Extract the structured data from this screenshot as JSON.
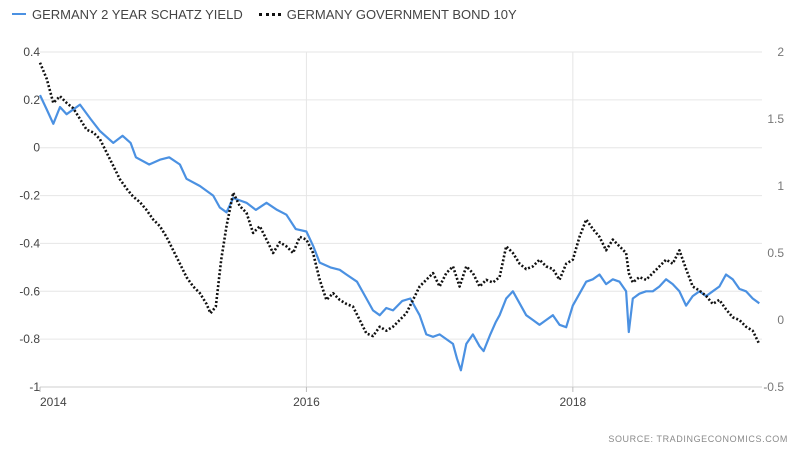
{
  "colors": {
    "yield_2y": "#4b91e2",
    "bond_10y": "#111111",
    "grid": "#e6e6e6",
    "axis_text": "#444444"
  },
  "legend": {
    "series_1": "GERMANY 2 YEAR SCHATZ YIELD",
    "series_2": "GERMANY GOVERNMENT BOND 10Y"
  },
  "source": "SOURCE:  TRADINGECONOMICS.COM",
  "chart_data": {
    "type": "line",
    "grid": true,
    "legend_position": "top-left",
    "x_axis": {
      "range": [
        2014.0,
        2019.42
      ],
      "ticks": [
        2014,
        2016,
        2018
      ],
      "tick_labels": [
        "2014",
        "2016",
        "2018"
      ]
    },
    "y_left": {
      "range": [
        -1,
        0.4
      ],
      "ticks": [
        0.4,
        0.2,
        0,
        -0.2,
        -0.4,
        -0.6,
        -0.8,
        -1
      ],
      "tick_labels": [
        "0.4",
        "0.2",
        "0",
        "-0.2",
        "-0.4",
        "-0.6",
        "-0.8",
        "-1"
      ]
    },
    "y_right": {
      "range": [
        -0.5,
        2
      ],
      "ticks": [
        2,
        1.5,
        1,
        0.5,
        0,
        -0.5
      ],
      "tick_labels": [
        "2",
        "1.5",
        "1",
        "0.5",
        "0",
        "-0.5"
      ]
    },
    "series": [
      {
        "name": "GERMANY 2 YEAR SCHATZ YIELD",
        "axis": "left",
        "style": "solid",
        "points": [
          [
            2014.0,
            0.22
          ],
          [
            2014.05,
            0.16
          ],
          [
            2014.1,
            0.1
          ],
          [
            2014.15,
            0.17
          ],
          [
            2014.2,
            0.14
          ],
          [
            2014.3,
            0.18
          ],
          [
            2014.38,
            0.12
          ],
          [
            2014.45,
            0.07
          ],
          [
            2014.55,
            0.02
          ],
          [
            2014.62,
            0.05
          ],
          [
            2014.68,
            0.02
          ],
          [
            2014.72,
            -0.04
          ],
          [
            2014.82,
            -0.07
          ],
          [
            2014.9,
            -0.05
          ],
          [
            2014.97,
            -0.04
          ],
          [
            2015.05,
            -0.07
          ],
          [
            2015.1,
            -0.13
          ],
          [
            2015.2,
            -0.16
          ],
          [
            2015.3,
            -0.2
          ],
          [
            2015.35,
            -0.25
          ],
          [
            2015.4,
            -0.27
          ],
          [
            2015.45,
            -0.21
          ],
          [
            2015.5,
            -0.22
          ],
          [
            2015.55,
            -0.23
          ],
          [
            2015.62,
            -0.26
          ],
          [
            2015.7,
            -0.23
          ],
          [
            2015.78,
            -0.26
          ],
          [
            2015.85,
            -0.28
          ],
          [
            2015.92,
            -0.34
          ],
          [
            2016.0,
            -0.35
          ],
          [
            2016.05,
            -0.41
          ],
          [
            2016.1,
            -0.48
          ],
          [
            2016.18,
            -0.5
          ],
          [
            2016.25,
            -0.51
          ],
          [
            2016.3,
            -0.53
          ],
          [
            2016.38,
            -0.56
          ],
          [
            2016.45,
            -0.63
          ],
          [
            2016.5,
            -0.68
          ],
          [
            2016.55,
            -0.7
          ],
          [
            2016.6,
            -0.67
          ],
          [
            2016.65,
            -0.68
          ],
          [
            2016.72,
            -0.64
          ],
          [
            2016.78,
            -0.63
          ],
          [
            2016.85,
            -0.7
          ],
          [
            2016.9,
            -0.78
          ],
          [
            2016.95,
            -0.79
          ],
          [
            2017.0,
            -0.78
          ],
          [
            2017.05,
            -0.8
          ],
          [
            2017.1,
            -0.82
          ],
          [
            2017.13,
            -0.88
          ],
          [
            2017.16,
            -0.93
          ],
          [
            2017.2,
            -0.82
          ],
          [
            2017.25,
            -0.78
          ],
          [
            2017.3,
            -0.83
          ],
          [
            2017.33,
            -0.85
          ],
          [
            2017.38,
            -0.78
          ],
          [
            2017.42,
            -0.73
          ],
          [
            2017.45,
            -0.7
          ],
          [
            2017.5,
            -0.63
          ],
          [
            2017.55,
            -0.6
          ],
          [
            2017.6,
            -0.65
          ],
          [
            2017.65,
            -0.7
          ],
          [
            2017.7,
            -0.72
          ],
          [
            2017.75,
            -0.74
          ],
          [
            2017.8,
            -0.72
          ],
          [
            2017.85,
            -0.7
          ],
          [
            2017.9,
            -0.74
          ],
          [
            2017.95,
            -0.75
          ],
          [
            2018.0,
            -0.66
          ],
          [
            2018.05,
            -0.61
          ],
          [
            2018.1,
            -0.56
          ],
          [
            2018.15,
            -0.55
          ],
          [
            2018.2,
            -0.53
          ],
          [
            2018.25,
            -0.57
          ],
          [
            2018.3,
            -0.55
          ],
          [
            2018.35,
            -0.56
          ],
          [
            2018.4,
            -0.6
          ],
          [
            2018.42,
            -0.77
          ],
          [
            2018.45,
            -0.63
          ],
          [
            2018.5,
            -0.61
          ],
          [
            2018.55,
            -0.6
          ],
          [
            2018.6,
            -0.6
          ],
          [
            2018.65,
            -0.58
          ],
          [
            2018.7,
            -0.55
          ],
          [
            2018.75,
            -0.57
          ],
          [
            2018.8,
            -0.6
          ],
          [
            2018.85,
            -0.66
          ],
          [
            2018.9,
            -0.62
          ],
          [
            2018.95,
            -0.6
          ],
          [
            2019.0,
            -0.62
          ],
          [
            2019.05,
            -0.6
          ],
          [
            2019.1,
            -0.58
          ],
          [
            2019.15,
            -0.53
          ],
          [
            2019.2,
            -0.55
          ],
          [
            2019.25,
            -0.59
          ],
          [
            2019.3,
            -0.6
          ],
          [
            2019.35,
            -0.63
          ],
          [
            2019.4,
            -0.65
          ]
        ]
      },
      {
        "name": "GERMANY GOVERNMENT BOND 10Y",
        "axis": "right",
        "style": "dotted",
        "points": [
          [
            2014.0,
            1.92
          ],
          [
            2014.05,
            1.8
          ],
          [
            2014.1,
            1.62
          ],
          [
            2014.15,
            1.67
          ],
          [
            2014.2,
            1.62
          ],
          [
            2014.25,
            1.58
          ],
          [
            2014.3,
            1.5
          ],
          [
            2014.35,
            1.42
          ],
          [
            2014.4,
            1.4
          ],
          [
            2014.45,
            1.35
          ],
          [
            2014.5,
            1.25
          ],
          [
            2014.55,
            1.15
          ],
          [
            2014.6,
            1.05
          ],
          [
            2014.65,
            0.98
          ],
          [
            2014.7,
            0.92
          ],
          [
            2014.75,
            0.88
          ],
          [
            2014.8,
            0.82
          ],
          [
            2014.85,
            0.75
          ],
          [
            2014.9,
            0.7
          ],
          [
            2014.95,
            0.62
          ],
          [
            2015.0,
            0.52
          ],
          [
            2015.05,
            0.42
          ],
          [
            2015.1,
            0.32
          ],
          [
            2015.15,
            0.25
          ],
          [
            2015.2,
            0.2
          ],
          [
            2015.25,
            0.12
          ],
          [
            2015.28,
            0.05
          ],
          [
            2015.32,
            0.1
          ],
          [
            2015.36,
            0.45
          ],
          [
            2015.4,
            0.7
          ],
          [
            2015.45,
            0.95
          ],
          [
            2015.5,
            0.85
          ],
          [
            2015.55,
            0.8
          ],
          [
            2015.6,
            0.65
          ],
          [
            2015.65,
            0.7
          ],
          [
            2015.7,
            0.6
          ],
          [
            2015.75,
            0.5
          ],
          [
            2015.8,
            0.58
          ],
          [
            2015.85,
            0.55
          ],
          [
            2015.9,
            0.5
          ],
          [
            2015.95,
            0.62
          ],
          [
            2016.0,
            0.6
          ],
          [
            2016.05,
            0.5
          ],
          [
            2016.1,
            0.3
          ],
          [
            2016.15,
            0.15
          ],
          [
            2016.2,
            0.2
          ],
          [
            2016.25,
            0.15
          ],
          [
            2016.3,
            0.12
          ],
          [
            2016.35,
            0.1
          ],
          [
            2016.4,
            0.0
          ],
          [
            2016.45,
            -0.1
          ],
          [
            2016.5,
            -0.12
          ],
          [
            2016.55,
            -0.05
          ],
          [
            2016.6,
            -0.08
          ],
          [
            2016.65,
            -0.05
          ],
          [
            2016.7,
            0.0
          ],
          [
            2016.75,
            0.05
          ],
          [
            2016.8,
            0.15
          ],
          [
            2016.85,
            0.25
          ],
          [
            2016.9,
            0.3
          ],
          [
            2016.95,
            0.35
          ],
          [
            2017.0,
            0.25
          ],
          [
            2017.05,
            0.35
          ],
          [
            2017.1,
            0.4
          ],
          [
            2017.15,
            0.25
          ],
          [
            2017.2,
            0.4
          ],
          [
            2017.25,
            0.35
          ],
          [
            2017.3,
            0.25
          ],
          [
            2017.35,
            0.3
          ],
          [
            2017.4,
            0.28
          ],
          [
            2017.45,
            0.32
          ],
          [
            2017.5,
            0.55
          ],
          [
            2017.55,
            0.5
          ],
          [
            2017.6,
            0.42
          ],
          [
            2017.65,
            0.38
          ],
          [
            2017.7,
            0.4
          ],
          [
            2017.75,
            0.45
          ],
          [
            2017.8,
            0.4
          ],
          [
            2017.85,
            0.38
          ],
          [
            2017.9,
            0.3
          ],
          [
            2017.95,
            0.42
          ],
          [
            2018.0,
            0.45
          ],
          [
            2018.05,
            0.62
          ],
          [
            2018.1,
            0.75
          ],
          [
            2018.15,
            0.68
          ],
          [
            2018.2,
            0.62
          ],
          [
            2018.25,
            0.52
          ],
          [
            2018.3,
            0.6
          ],
          [
            2018.35,
            0.55
          ],
          [
            2018.4,
            0.5
          ],
          [
            2018.42,
            0.35
          ],
          [
            2018.45,
            0.28
          ],
          [
            2018.5,
            0.32
          ],
          [
            2018.55,
            0.3
          ],
          [
            2018.6,
            0.35
          ],
          [
            2018.65,
            0.4
          ],
          [
            2018.7,
            0.45
          ],
          [
            2018.75,
            0.42
          ],
          [
            2018.8,
            0.52
          ],
          [
            2018.85,
            0.38
          ],
          [
            2018.9,
            0.25
          ],
          [
            2018.95,
            0.22
          ],
          [
            2019.0,
            0.18
          ],
          [
            2019.05,
            0.12
          ],
          [
            2019.1,
            0.15
          ],
          [
            2019.15,
            0.08
          ],
          [
            2019.2,
            0.02
          ],
          [
            2019.25,
            0.0
          ],
          [
            2019.3,
            -0.05
          ],
          [
            2019.35,
            -0.08
          ],
          [
            2019.4,
            -0.18
          ]
        ]
      }
    ]
  }
}
